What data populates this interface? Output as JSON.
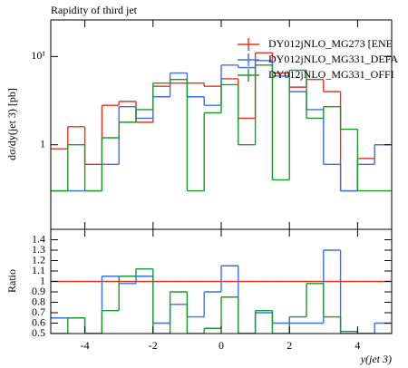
{
  "chart_data": [
    {
      "type": "histogram",
      "title": "Rapidity of third jet",
      "ylabel": "dσ/dy(jet 3) [pb]",
      "bins": [
        -5,
        -4.5,
        -4,
        -3.5,
        -3,
        -2.5,
        -2,
        -1.5,
        -1,
        -0.5,
        0,
        0.5,
        1,
        1.5,
        2,
        2.5,
        3,
        3.5,
        4,
        4.5,
        5
      ],
      "xlim": [
        -5,
        5
      ],
      "ylim": [
        0.11,
        26
      ],
      "log_y": true,
      "yticks": [
        1,
        {
          "value": 10,
          "label": "10¹"
        }
      ],
      "legend": "top-right",
      "series": [
        {
          "name": "DY012jNLO_MG273 [ENE",
          "color": "#e8321f",
          "values": [
            0.9,
            1.6,
            0.6,
            2.8,
            3.1,
            1.8,
            4.6,
            5.0,
            5.0,
            4.6,
            5.6,
            2.0,
            11,
            6.5,
            4.5,
            5.5,
            4.0,
            0.3,
            0.7,
            1.0
          ]
        },
        {
          "name": "DY012jNLO_MG331_DEFA",
          "color": "#3a6ff0",
          "values": [
            0.3,
            0.3,
            0.3,
            0.6,
            2.7,
            2.0,
            3.5,
            6.5,
            3.5,
            2.8,
            8.0,
            7.5,
            9.0,
            6.0,
            4.0,
            2.5,
            0.6,
            0.3,
            0.6,
            1.0
          ]
        },
        {
          "name": "DY012jNLO_MG331_OFFI",
          "color": "#1a9a2a",
          "values": [
            0.3,
            1.0,
            0.3,
            1.2,
            1.8,
            2.5,
            5.0,
            5.5,
            0.3,
            2.3,
            4.8,
            1.0,
            8.0,
            0.4,
            7.0,
            2.0,
            2.7,
            1.5,
            0.3,
            0.3
          ]
        }
      ]
    },
    {
      "type": "histogram",
      "ylabel": "Ratio",
      "xlabel": "y(jet 3)",
      "bins": [
        -5,
        -4.5,
        -4,
        -3.5,
        -3,
        -2.5,
        -2,
        -1.5,
        -1,
        -0.5,
        0,
        0.5,
        1,
        1.5,
        2,
        2.5,
        3,
        3.5,
        4,
        4.5,
        5
      ],
      "xlim": [
        -5,
        5
      ],
      "ylim": [
        0.5,
        1.5
      ],
      "xticks": [
        -4,
        -2,
        0,
        2,
        4
      ],
      "yticks": [
        0.5,
        0.6,
        0.7,
        0.8,
        0.9,
        1,
        1.1,
        1.2,
        1.3,
        1.4
      ],
      "series": [
        {
          "color": "#e8321f",
          "values": [
            1,
            1,
            1,
            1,
            1,
            1,
            1,
            1,
            1,
            1,
            1,
            1,
            1,
            1,
            1,
            1,
            1,
            1,
            1,
            1
          ]
        },
        {
          "color": "#3a6ff0",
          "values": [
            0.65,
            0.65,
            0.5,
            1.05,
            0.98,
            1.05,
            0.6,
            0.78,
            0.66,
            0.9,
            1.15,
            0.5,
            0.7,
            0.6,
            0.6,
            0.6,
            1.3,
            0.5,
            0.5,
            0.6
          ]
        },
        {
          "color": "#1a9a2a",
          "values": [
            0.5,
            0.65,
            0.5,
            0.72,
            1.05,
            1.12,
            0.5,
            0.9,
            0.5,
            0.55,
            0.85,
            0.5,
            0.72,
            0.5,
            0.66,
            0.98,
            0.66,
            0.52,
            0.5,
            0.5
          ]
        }
      ]
    }
  ]
}
